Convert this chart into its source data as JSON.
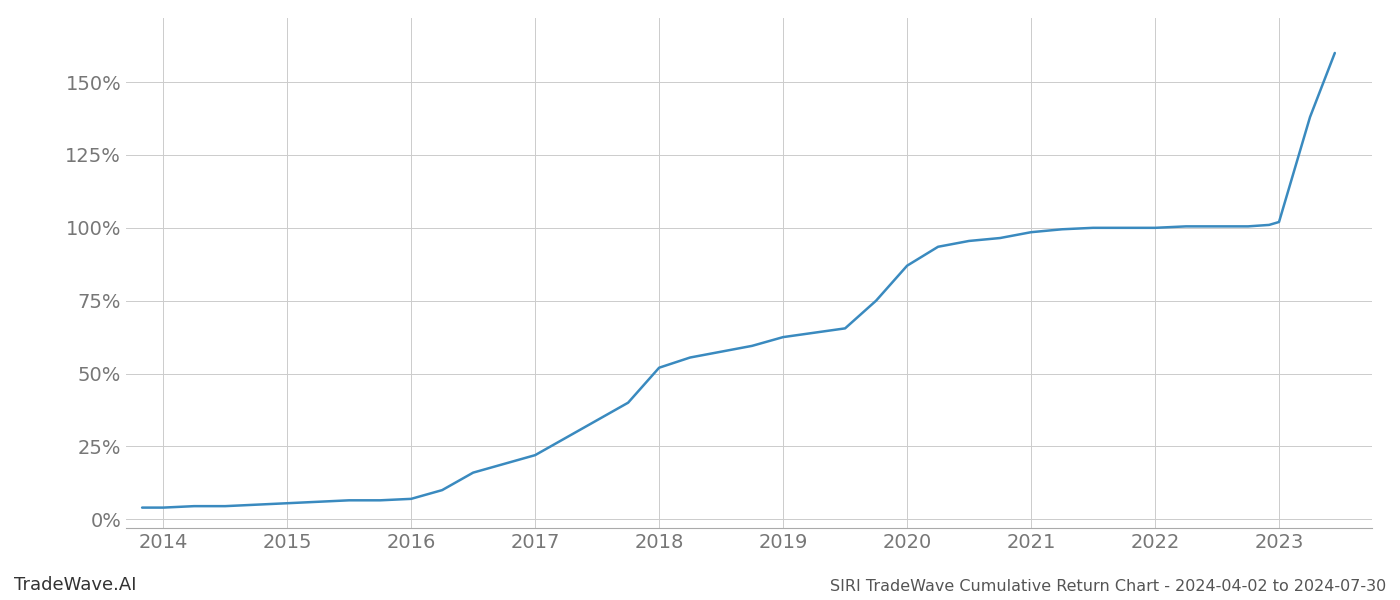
{
  "title": "SIRI TradeWave Cumulative Return Chart - 2024-04-02 to 2024-07-30",
  "watermark": "TradeWave.AI",
  "line_color": "#3a8abf",
  "line_width": 1.8,
  "background_color": "#ffffff",
  "grid_color": "#cccccc",
  "x_values": [
    2013.83,
    2014.0,
    2014.25,
    2014.5,
    2014.75,
    2015.0,
    2015.25,
    2015.5,
    2015.75,
    2016.0,
    2016.25,
    2016.5,
    2016.75,
    2017.0,
    2017.25,
    2017.5,
    2017.75,
    2018.0,
    2018.25,
    2018.5,
    2018.75,
    2019.0,
    2019.25,
    2019.5,
    2019.75,
    2020.0,
    2020.25,
    2020.5,
    2020.75,
    2021.0,
    2021.25,
    2021.5,
    2021.75,
    2022.0,
    2022.25,
    2022.5,
    2022.75,
    2022.92,
    2023.0,
    2023.25,
    2023.45
  ],
  "y_values": [
    0.04,
    0.04,
    0.045,
    0.045,
    0.05,
    0.055,
    0.06,
    0.065,
    0.065,
    0.07,
    0.1,
    0.16,
    0.19,
    0.22,
    0.28,
    0.34,
    0.4,
    0.52,
    0.555,
    0.575,
    0.595,
    0.625,
    0.64,
    0.655,
    0.75,
    0.87,
    0.935,
    0.955,
    0.965,
    0.985,
    0.995,
    1.0,
    1.0,
    1.0,
    1.005,
    1.005,
    1.005,
    1.01,
    1.02,
    1.38,
    1.6
  ],
  "yticks": [
    0.0,
    0.25,
    0.5,
    0.75,
    1.0,
    1.25,
    1.5
  ],
  "ytick_labels": [
    "0%",
    "25%",
    "50%",
    "75%",
    "100%",
    "125%",
    "150%"
  ],
  "xticks": [
    2014,
    2015,
    2016,
    2017,
    2018,
    2019,
    2020,
    2021,
    2022,
    2023
  ],
  "xlim": [
    2013.7,
    2023.75
  ],
  "ylim": [
    -0.03,
    1.72
  ],
  "tick_label_color": "#777777",
  "tick_fontsize": 14,
  "watermark_fontsize": 13,
  "title_fontsize": 11.5
}
